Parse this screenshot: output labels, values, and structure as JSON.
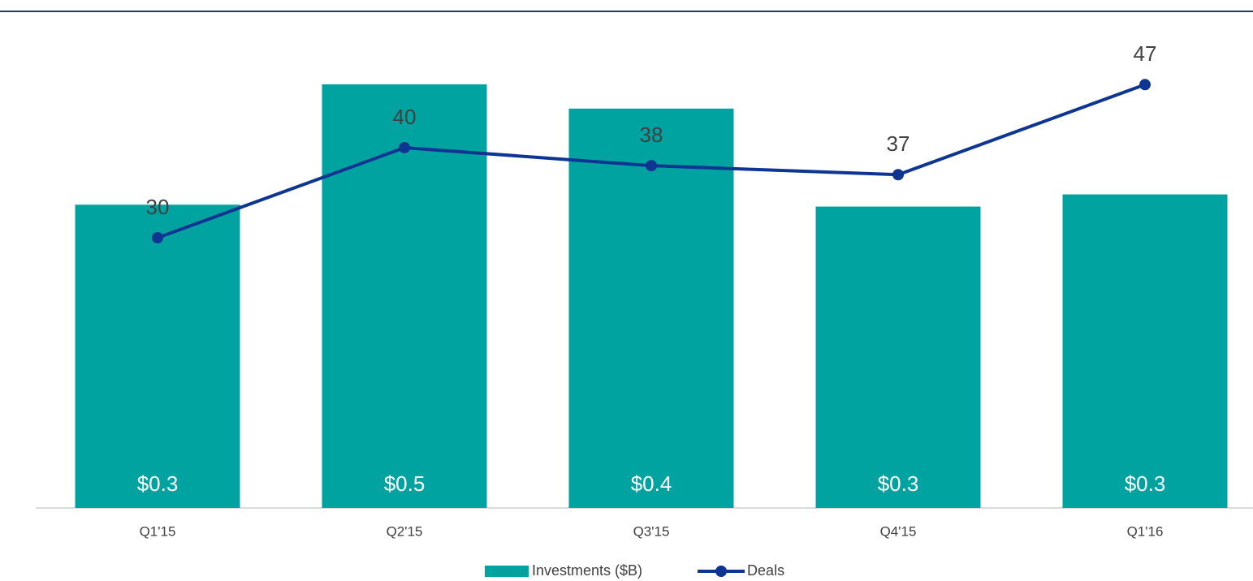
{
  "chart_data": {
    "type": "bar_line",
    "categories": [
      "Q1'15",
      "Q2'15",
      "Q3'15",
      "Q4'15",
      "Q1'16"
    ],
    "series": [
      {
        "name": "Investments ($B)",
        "color": "#00a3a0",
        "values": [
          0.325,
          0.454,
          0.428,
          0.323,
          0.336
        ],
        "value_labels": [
          "$0.3",
          "$0.5",
          "$0.4",
          "$0.3",
          "$0.3"
        ]
      },
      {
        "name": "Deals",
        "color": "#0d3591",
        "axis": "y2",
        "values": [
          30,
          40,
          38,
          37,
          47
        ]
      }
    ],
    "ylim": [
      0,
      0.5
    ],
    "y2lim": [
      0,
      51.8
    ],
    "legend": "bottom"
  }
}
